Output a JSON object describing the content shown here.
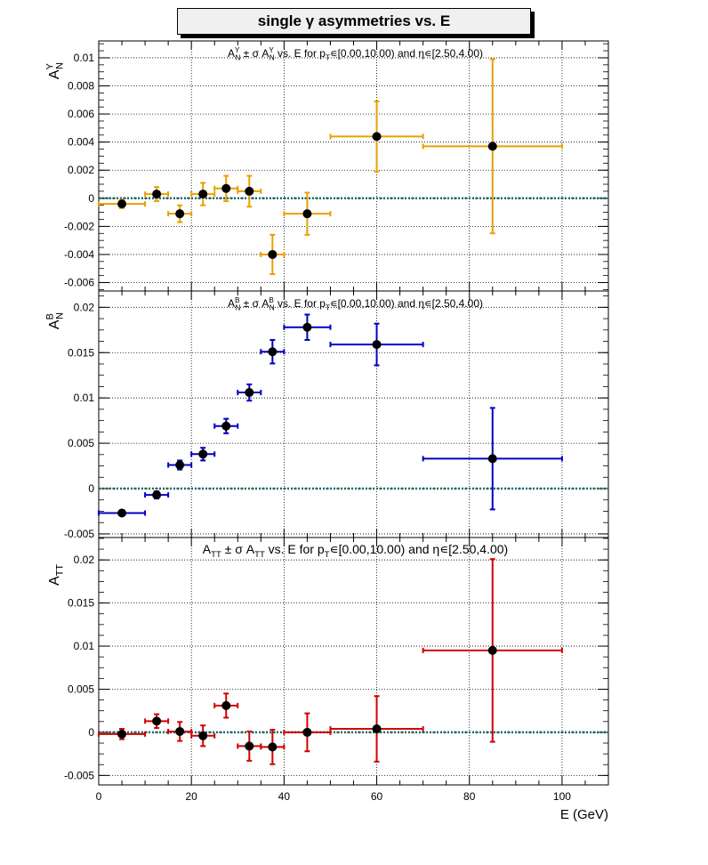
{
  "page": {
    "title": "single  γ asymmetries vs. E"
  },
  "chart_data": [
    {
      "type": "scatter",
      "panel": "AN_Y",
      "ylabel": "A",
      "ylabel_sup": "Y",
      "ylabel_sub": "N",
      "subtitle": {
        "parts": [
          {
            "t": "A",
            "s": ""
          },
          {
            "t": "Y",
            "s": "sup"
          },
          {
            "t": "N",
            "s": "sub"
          },
          {
            "t": " ± σ A",
            "s": ""
          },
          {
            "t": "Y",
            "s": "sup"
          },
          {
            "t": "N",
            "s": "sub"
          },
          {
            "t": " vs. E for p",
            "s": ""
          },
          {
            "t": "T",
            "s": "sub"
          },
          {
            "t": "∊[0.00,10.00) and η∊[2.50,4.00)",
            "s": ""
          }
        ]
      },
      "color": "#e8a000",
      "ylim": [
        -0.0066,
        0.0112
      ],
      "yticks": [
        -0.006,
        -0.004,
        -0.002,
        0,
        0.002,
        0.004,
        0.006,
        0.008,
        0.01
      ],
      "ytick_labels": [
        "-0.006",
        "-0.004",
        "-0.002",
        "0",
        "0.002",
        "0.004",
        "0.006",
        "0.008",
        "0.01"
      ],
      "grid": true,
      "points": [
        {
          "x": 5,
          "xlo": 0,
          "xhi": 10,
          "y": -0.0004,
          "yerr": 0.0003
        },
        {
          "x": 12.5,
          "xlo": 10,
          "xhi": 15,
          "y": 0.0003,
          "yerr": 0.0005
        },
        {
          "x": 17.5,
          "xlo": 15,
          "xhi": 20,
          "y": -0.0011,
          "yerr": 0.0006
        },
        {
          "x": 22.5,
          "xlo": 20,
          "xhi": 25,
          "y": 0.0003,
          "yerr": 0.0008
        },
        {
          "x": 27.5,
          "xlo": 25,
          "xhi": 30,
          "y": 0.0007,
          "yerr": 0.0009
        },
        {
          "x": 32.5,
          "xlo": 30,
          "xhi": 35,
          "y": 0.0005,
          "yerr": 0.0011
        },
        {
          "x": 37.5,
          "xlo": 35,
          "xhi": 40,
          "y": -0.004,
          "yerr": 0.0014
        },
        {
          "x": 45,
          "xlo": 40,
          "xhi": 50,
          "y": -0.0011,
          "yerr": 0.0015
        },
        {
          "x": 60,
          "xlo": 50,
          "xhi": 70,
          "y": 0.0044,
          "yerr": 0.0025
        },
        {
          "x": 85,
          "xlo": 70,
          "xhi": 100,
          "y": 0.0037,
          "yerr": 0.0062
        }
      ]
    },
    {
      "type": "scatter",
      "panel": "AN_B",
      "ylabel": "A",
      "ylabel_sup": "B",
      "ylabel_sub": "N",
      "subtitle": {
        "parts": [
          {
            "t": "A",
            "s": ""
          },
          {
            "t": "B",
            "s": "sup"
          },
          {
            "t": "N",
            "s": "sub"
          },
          {
            "t": " ± σ A",
            "s": ""
          },
          {
            "t": "B",
            "s": "sup"
          },
          {
            "t": "N",
            "s": "sub"
          },
          {
            "t": " vs. E for p",
            "s": ""
          },
          {
            "t": "T",
            "s": "sub"
          },
          {
            "t": "∊[0.00,10.00) and η∊[2.50,4.00)",
            "s": ""
          }
        ]
      },
      "color": "#0000c8",
      "ylim": [
        -0.0054,
        0.0218
      ],
      "yticks": [
        -0.005,
        0,
        0.005,
        0.01,
        0.015,
        0.02
      ],
      "ytick_labels": [
        "-0.005",
        "0",
        "0.005",
        "0.01",
        "0.015",
        "0.02"
      ],
      "grid": true,
      "points": [
        {
          "x": 5,
          "xlo": 0,
          "xhi": 10,
          "y": -0.0027,
          "yerr": 0.0001
        },
        {
          "x": 12.5,
          "xlo": 10,
          "xhi": 15,
          "y": -0.0007,
          "yerr": 0.0004
        },
        {
          "x": 17.5,
          "xlo": 15,
          "xhi": 20,
          "y": 0.0026,
          "yerr": 0.0005
        },
        {
          "x": 22.5,
          "xlo": 20,
          "xhi": 25,
          "y": 0.0038,
          "yerr": 0.0007
        },
        {
          "x": 27.5,
          "xlo": 25,
          "xhi": 30,
          "y": 0.0069,
          "yerr": 0.0008
        },
        {
          "x": 32.5,
          "xlo": 30,
          "xhi": 35,
          "y": 0.0106,
          "yerr": 0.0009
        },
        {
          "x": 37.5,
          "xlo": 35,
          "xhi": 40,
          "y": 0.0151,
          "yerr": 0.0013
        },
        {
          "x": 45,
          "xlo": 40,
          "xhi": 50,
          "y": 0.0178,
          "yerr": 0.0014
        },
        {
          "x": 60,
          "xlo": 50,
          "xhi": 70,
          "y": 0.0159,
          "yerr": 0.0023
        },
        {
          "x": 85,
          "xlo": 70,
          "xhi": 100,
          "y": 0.0033,
          "yerr": 0.0056
        }
      ]
    },
    {
      "type": "scatter",
      "panel": "ATT",
      "ylabel": "A",
      "ylabel_sup": "",
      "ylabel_sub": "TT",
      "subtitle": {
        "parts": [
          {
            "t": "A",
            "s": ""
          },
          {
            "t": "TT",
            "s": "sub"
          },
          {
            "t": " ± σ A",
            "s": ""
          },
          {
            "t": "TT",
            "s": "sub"
          },
          {
            "t": " vs. E for p",
            "s": ""
          },
          {
            "t": "T",
            "s": "sub"
          },
          {
            "t": "∊[0.00,10.00) and η∊[2.50,4.00)",
            "s": ""
          }
        ]
      },
      "color": "#d40000",
      "ylim": [
        -0.0061,
        0.0226
      ],
      "yticks": [
        -0.005,
        0,
        0.005,
        0.01,
        0.015,
        0.02
      ],
      "ytick_labels": [
        "-0.005",
        "0",
        "0.005",
        "0.01",
        "0.015",
        "0.02"
      ],
      "grid": true,
      "xlabel": "E (GeV)",
      "xlim": [
        0,
        110
      ],
      "xticks": [
        0,
        20,
        40,
        60,
        80,
        100
      ],
      "xtick_labels": [
        "0",
        "20",
        "40",
        "60",
        "80",
        "100"
      ],
      "points": [
        {
          "x": 5,
          "xlo": 0,
          "xhi": 10,
          "y": -0.0002,
          "yerr": 0.0006
        },
        {
          "x": 12.5,
          "xlo": 10,
          "xhi": 15,
          "y": 0.0013,
          "yerr": 0.0008
        },
        {
          "x": 17.5,
          "xlo": 15,
          "xhi": 20,
          "y": 0.0001,
          "yerr": 0.0011
        },
        {
          "x": 22.5,
          "xlo": 20,
          "xhi": 25,
          "y": -0.0004,
          "yerr": 0.0012
        },
        {
          "x": 27.5,
          "xlo": 25,
          "xhi": 30,
          "y": 0.0031,
          "yerr": 0.0014
        },
        {
          "x": 32.5,
          "xlo": 30,
          "xhi": 35,
          "y": -0.0016,
          "yerr": 0.0017
        },
        {
          "x": 37.5,
          "xlo": 35,
          "xhi": 40,
          "y": -0.0017,
          "yerr": 0.002
        },
        {
          "x": 45,
          "xlo": 40,
          "xhi": 50,
          "y": 0.0,
          "yerr": 0.0022
        },
        {
          "x": 60,
          "xlo": 50,
          "xhi": 70,
          "y": 0.0004,
          "yerr": 0.0038
        },
        {
          "x": 85,
          "xlo": 70,
          "xhi": 100,
          "y": 0.0095,
          "yerr": 0.0106
        }
      ]
    }
  ]
}
